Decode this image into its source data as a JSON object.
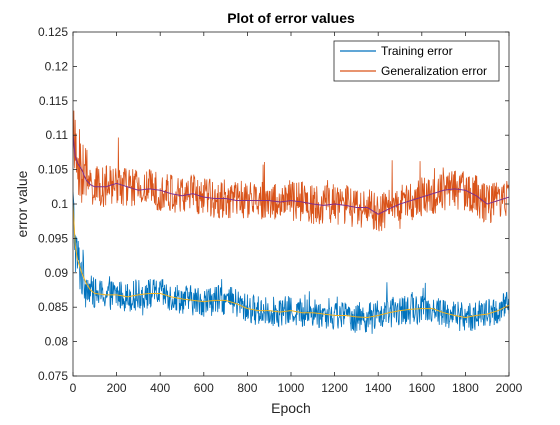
{
  "chart_data": {
    "type": "line",
    "title": "Plot of error values",
    "xlabel": "Epoch",
    "ylabel": "error value",
    "xlim": [
      0,
      2000
    ],
    "ylim": [
      0.075,
      0.125
    ],
    "xticks": [
      0,
      200,
      400,
      600,
      800,
      1000,
      1200,
      1400,
      1600,
      1800,
      2000
    ],
    "xtick_labels": [
      "0",
      "200",
      "400",
      "600",
      "800",
      "1000",
      "1200",
      "1400",
      "1600",
      "1800",
      "2000"
    ],
    "yticks": [
      0.075,
      0.08,
      0.085,
      0.09,
      0.095,
      0.1,
      0.105,
      0.11,
      0.115,
      0.12,
      0.125
    ],
    "ytick_labels": [
      "0.075",
      "0.08",
      "0.085",
      "0.09",
      "0.095",
      "0.1",
      "0.105",
      "0.11",
      "0.115",
      "0.12",
      "0.125"
    ],
    "grid": false,
    "legend_position": "top-right",
    "series": [
      {
        "name": "Training error",
        "color": "#0072BD",
        "kind": "noisy",
        "noise_amplitude": 0.0022,
        "x": [
          0,
          10,
          20,
          40,
          60,
          80,
          100,
          150,
          200,
          250,
          300,
          350,
          400,
          450,
          500,
          550,
          600,
          650,
          700,
          750,
          800,
          850,
          900,
          950,
          1000,
          1050,
          1100,
          1150,
          1200,
          1250,
          1300,
          1350,
          1400,
          1450,
          1500,
          1550,
          1600,
          1650,
          1700,
          1750,
          1800,
          1850,
          1900,
          1950,
          2000
        ],
        "y": [
          0.1,
          0.094,
          0.092,
          0.09,
          0.0885,
          0.0875,
          0.087,
          0.0868,
          0.0868,
          0.0865,
          0.0868,
          0.087,
          0.087,
          0.0865,
          0.0862,
          0.086,
          0.0858,
          0.086,
          0.086,
          0.0855,
          0.0848,
          0.0845,
          0.0845,
          0.0843,
          0.0845,
          0.0842,
          0.0842,
          0.084,
          0.0838,
          0.0838,
          0.0836,
          0.0835,
          0.0838,
          0.0842,
          0.0845,
          0.0847,
          0.0848,
          0.0848,
          0.0842,
          0.0838,
          0.0835,
          0.0838,
          0.084,
          0.0845,
          0.0853
        ]
      },
      {
        "name": "Generalization error",
        "color": "#D95319",
        "kind": "noisy",
        "noise_amplitude": 0.003,
        "x": [
          0,
          10,
          20,
          40,
          60,
          80,
          100,
          150,
          200,
          250,
          300,
          350,
          400,
          450,
          500,
          550,
          600,
          650,
          700,
          750,
          800,
          850,
          900,
          950,
          1000,
          1050,
          1100,
          1150,
          1200,
          1250,
          1300,
          1350,
          1400,
          1450,
          1500,
          1550,
          1600,
          1650,
          1700,
          1750,
          1800,
          1850,
          1900,
          1950,
          2000
        ],
        "y": [
          0.11,
          0.107,
          0.106,
          0.105,
          0.1035,
          0.1028,
          0.1025,
          0.1025,
          0.103,
          0.1025,
          0.102,
          0.1022,
          0.102,
          0.1015,
          0.1012,
          0.1015,
          0.101,
          0.1008,
          0.1008,
          0.1005,
          0.1005,
          0.1005,
          0.1005,
          0.1003,
          0.1005,
          0.1003,
          0.1,
          0.0998,
          0.1,
          0.0998,
          0.0995,
          0.0995,
          0.0985,
          0.0993,
          0.1,
          0.1005,
          0.101,
          0.1015,
          0.102,
          0.1022,
          0.102,
          0.1012,
          0.1,
          0.1005,
          0.101
        ]
      },
      {
        "name": "",
        "color": "#EDB120",
        "kind": "smooth",
        "x": [
          0,
          10,
          20,
          40,
          60,
          80,
          100,
          150,
          200,
          250,
          300,
          350,
          400,
          450,
          500,
          550,
          600,
          650,
          700,
          750,
          800,
          850,
          900,
          950,
          1000,
          1050,
          1100,
          1150,
          1200,
          1250,
          1300,
          1350,
          1400,
          1450,
          1500,
          1550,
          1600,
          1650,
          1700,
          1750,
          1800,
          1850,
          1900,
          1950,
          2000
        ],
        "y": [
          0.1,
          0.094,
          0.092,
          0.09,
          0.0885,
          0.0875,
          0.087,
          0.0868,
          0.0868,
          0.0865,
          0.0868,
          0.087,
          0.087,
          0.0865,
          0.0862,
          0.086,
          0.0858,
          0.086,
          0.086,
          0.0855,
          0.0848,
          0.0845,
          0.0845,
          0.0843,
          0.0845,
          0.0842,
          0.0842,
          0.084,
          0.0838,
          0.0838,
          0.0836,
          0.0835,
          0.0838,
          0.0842,
          0.0845,
          0.0847,
          0.0848,
          0.0848,
          0.0842,
          0.0838,
          0.0835,
          0.0838,
          0.084,
          0.0845,
          0.0853
        ]
      },
      {
        "name": "",
        "color": "#7E2F8E",
        "kind": "smooth",
        "x": [
          0,
          10,
          20,
          40,
          60,
          80,
          100,
          150,
          200,
          250,
          300,
          350,
          400,
          450,
          500,
          550,
          600,
          650,
          700,
          750,
          800,
          850,
          900,
          950,
          1000,
          1050,
          1100,
          1150,
          1200,
          1250,
          1300,
          1350,
          1400,
          1450,
          1500,
          1550,
          1600,
          1650,
          1700,
          1750,
          1800,
          1850,
          1900,
          1950,
          2000
        ],
        "y": [
          0.11,
          0.107,
          0.106,
          0.105,
          0.1035,
          0.1028,
          0.1025,
          0.1025,
          0.103,
          0.1025,
          0.102,
          0.1022,
          0.102,
          0.1015,
          0.1012,
          0.1015,
          0.101,
          0.1008,
          0.1008,
          0.1005,
          0.1005,
          0.1005,
          0.1005,
          0.1003,
          0.1005,
          0.1003,
          0.1,
          0.0998,
          0.1,
          0.0998,
          0.0995,
          0.0995,
          0.0985,
          0.0993,
          0.1,
          0.1005,
          0.101,
          0.1015,
          0.102,
          0.1022,
          0.102,
          0.1012,
          0.1,
          0.1005,
          0.101
        ]
      }
    ]
  }
}
